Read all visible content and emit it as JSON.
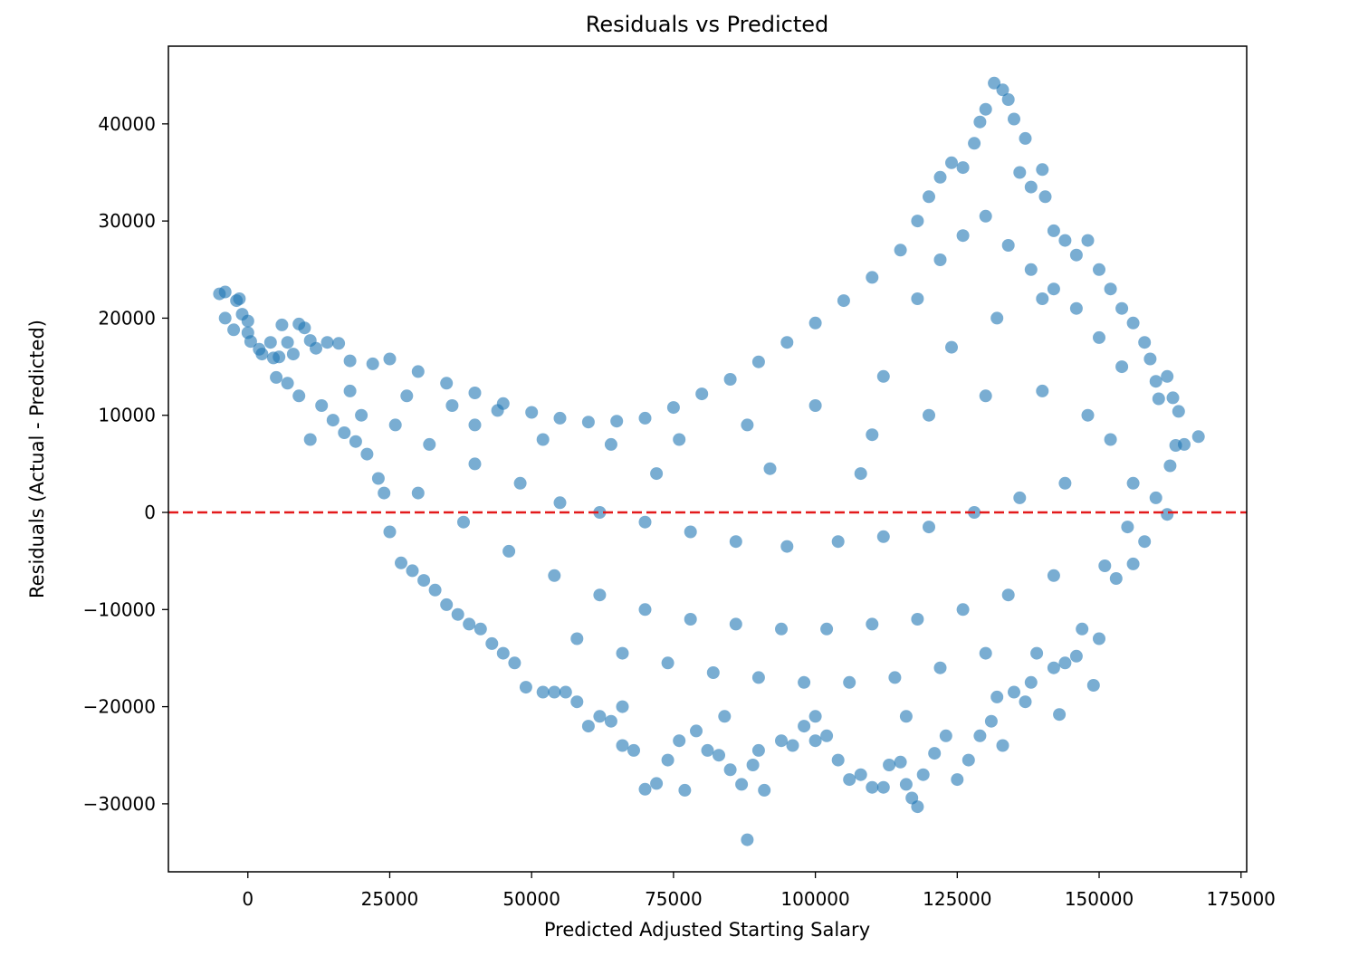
{
  "chart_data": {
    "type": "scatter",
    "title": "Residuals vs Predicted",
    "xlabel": "Predicted Adjusted Starting Salary",
    "ylabel": "Residuals (Actual - Predicted)",
    "xlim": [
      -14000,
      176000
    ],
    "ylim": [
      -37000,
      48000
    ],
    "xticks": [
      0,
      25000,
      50000,
      75000,
      100000,
      125000,
      150000,
      175000
    ],
    "xtick_labels": [
      "0",
      "25000",
      "50000",
      "75000",
      "100000",
      "125000",
      "150000",
      "175000"
    ],
    "yticks": [
      -30000,
      -20000,
      -10000,
      0,
      10000,
      20000,
      30000,
      40000
    ],
    "ytick_labels": [
      "−30000",
      "−20000",
      "−10000",
      "0",
      "10000",
      "20000",
      "30000",
      "40000"
    ],
    "grid": false,
    "reference_line": {
      "y": 0,
      "color": "#e31a1c",
      "style": "dashed"
    },
    "marker_color": "#1f77b4",
    "marker_alpha": 0.6,
    "series": [
      {
        "name": "",
        "points": [
          [
            -5000,
            22500
          ],
          [
            -4000,
            22700
          ],
          [
            -4000,
            20000
          ],
          [
            -2000,
            21800
          ],
          [
            -1500,
            22000
          ],
          [
            -2500,
            18800
          ],
          [
            -1000,
            20400
          ],
          [
            0,
            19700
          ],
          [
            0,
            18500
          ],
          [
            500,
            17600
          ],
          [
            2000,
            16800
          ],
          [
            2500,
            16300
          ],
          [
            4000,
            17500
          ],
          [
            4500,
            15900
          ],
          [
            5500,
            16000
          ],
          [
            6000,
            19300
          ],
          [
            7000,
            17500
          ],
          [
            8000,
            16300
          ],
          [
            9000,
            19400
          ],
          [
            10000,
            19000
          ],
          [
            11000,
            17700
          ],
          [
            12000,
            16900
          ],
          [
            14000,
            17500
          ],
          [
            16000,
            17400
          ],
          [
            18000,
            15600
          ],
          [
            22000,
            15300
          ],
          [
            25000,
            15800
          ],
          [
            30000,
            14500
          ],
          [
            35000,
            13300
          ],
          [
            40000,
            12300
          ],
          [
            45000,
            11200
          ],
          [
            50000,
            10300
          ],
          [
            55000,
            9700
          ],
          [
            60000,
            9300
          ],
          [
            65000,
            9400
          ],
          [
            70000,
            9700
          ],
          [
            75000,
            10800
          ],
          [
            80000,
            12200
          ],
          [
            85000,
            13700
          ],
          [
            90000,
            15500
          ],
          [
            95000,
            17500
          ],
          [
            100000,
            19500
          ],
          [
            105000,
            21800
          ],
          [
            110000,
            24200
          ],
          [
            115000,
            27000
          ],
          [
            118000,
            30000
          ],
          [
            120000,
            32500
          ],
          [
            122000,
            34500
          ],
          [
            124000,
            36000
          ],
          [
            126000,
            35500
          ],
          [
            128000,
            38000
          ],
          [
            129000,
            40200
          ],
          [
            130000,
            41500
          ],
          [
            131500,
            44200
          ],
          [
            133000,
            43500
          ],
          [
            134000,
            42500
          ],
          [
            135000,
            40500
          ],
          [
            137000,
            38500
          ],
          [
            136000,
            35000
          ],
          [
            138000,
            33500
          ],
          [
            140000,
            35300
          ],
          [
            140500,
            32500
          ],
          [
            142000,
            29000
          ],
          [
            144000,
            28000
          ],
          [
            146000,
            26500
          ],
          [
            148000,
            28000
          ],
          [
            150000,
            25000
          ],
          [
            152000,
            23000
          ],
          [
            154000,
            21000
          ],
          [
            156000,
            19500
          ],
          [
            158000,
            17500
          ],
          [
            159000,
            15800
          ],
          [
            160000,
            13500
          ],
          [
            160500,
            11700
          ],
          [
            162000,
            14000
          ],
          [
            163000,
            11800
          ],
          [
            164000,
            10400
          ],
          [
            163500,
            6900
          ],
          [
            165000,
            7000
          ],
          [
            167500,
            7800
          ],
          [
            162500,
            4800
          ],
          [
            162000,
            -200
          ],
          [
            158000,
            -3000
          ],
          [
            156000,
            -5300
          ],
          [
            155000,
            -1500
          ],
          [
            153000,
            -6800
          ],
          [
            151000,
            -5500
          ],
          [
            150000,
            -13000
          ],
          [
            149000,
            -17800
          ],
          [
            147000,
            -12000
          ],
          [
            146000,
            -14800
          ],
          [
            144000,
            -15500
          ],
          [
            143000,
            -20800
          ],
          [
            142000,
            -16000
          ],
          [
            139000,
            -14500
          ],
          [
            138000,
            -17500
          ],
          [
            137000,
            -19500
          ],
          [
            135000,
            -18500
          ],
          [
            133000,
            -24000
          ],
          [
            131000,
            -21500
          ],
          [
            129000,
            -23000
          ],
          [
            127000,
            -25500
          ],
          [
            125000,
            -27500
          ],
          [
            123000,
            -23000
          ],
          [
            121000,
            -24800
          ],
          [
            119000,
            -27000
          ],
          [
            118000,
            -30300
          ],
          [
            117000,
            -29400
          ],
          [
            116000,
            -28000
          ],
          [
            115000,
            -25700
          ],
          [
            113000,
            -26000
          ],
          [
            112000,
            -28300
          ],
          [
            110000,
            -28300
          ],
          [
            108000,
            -27000
          ],
          [
            106000,
            -27500
          ],
          [
            104000,
            -25500
          ],
          [
            102000,
            -23000
          ],
          [
            100000,
            -23500
          ],
          [
            98000,
            -22000
          ],
          [
            96000,
            -24000
          ],
          [
            94000,
            -23500
          ],
          [
            91000,
            -28600
          ],
          [
            90000,
            -24500
          ],
          [
            89000,
            -26000
          ],
          [
            88000,
            -33700
          ],
          [
            87000,
            -28000
          ],
          [
            85000,
            -26500
          ],
          [
            83000,
            -25000
          ],
          [
            81000,
            -24500
          ],
          [
            79000,
            -22500
          ],
          [
            77000,
            -28600
          ],
          [
            76000,
            -23500
          ],
          [
            74000,
            -25500
          ],
          [
            72000,
            -27900
          ],
          [
            70000,
            -28500
          ],
          [
            68000,
            -24500
          ],
          [
            66000,
            -24000
          ],
          [
            64000,
            -21500
          ],
          [
            62000,
            -21000
          ],
          [
            60000,
            -22000
          ],
          [
            58000,
            -19500
          ],
          [
            56000,
            -18500
          ],
          [
            54000,
            -18500
          ],
          [
            52000,
            -18500
          ],
          [
            49000,
            -18000
          ],
          [
            47000,
            -15500
          ],
          [
            45000,
            -14500
          ],
          [
            43000,
            -13500
          ],
          [
            41000,
            -12000
          ],
          [
            39000,
            -11500
          ],
          [
            37000,
            -10500
          ],
          [
            35000,
            -9500
          ],
          [
            33000,
            -8000
          ],
          [
            31000,
            -7000
          ],
          [
            29000,
            -6000
          ],
          [
            27000,
            -5200
          ],
          [
            25000,
            -2000
          ],
          [
            24000,
            2000
          ],
          [
            23000,
            3500
          ],
          [
            21000,
            6000
          ],
          [
            19000,
            7300
          ],
          [
            17000,
            8200
          ],
          [
            15000,
            9500
          ],
          [
            13000,
            11000
          ],
          [
            11000,
            7500
          ],
          [
            9000,
            12000
          ],
          [
            7000,
            13300
          ],
          [
            5000,
            13900
          ],
          [
            20000,
            10000
          ],
          [
            26000,
            9000
          ],
          [
            32000,
            7000
          ],
          [
            40000,
            5000
          ],
          [
            48000,
            3000
          ],
          [
            55000,
            1000
          ],
          [
            62000,
            0
          ],
          [
            70000,
            -1000
          ],
          [
            78000,
            -2000
          ],
          [
            86000,
            -3000
          ],
          [
            95000,
            -3500
          ],
          [
            104000,
            -3000
          ],
          [
            112000,
            -2500
          ],
          [
            120000,
            -1500
          ],
          [
            128000,
            0
          ],
          [
            136000,
            1500
          ],
          [
            144000,
            3000
          ],
          [
            30000,
            2000
          ],
          [
            38000,
            -1000
          ],
          [
            46000,
            -4000
          ],
          [
            54000,
            -6500
          ],
          [
            62000,
            -8500
          ],
          [
            70000,
            -10000
          ],
          [
            78000,
            -11000
          ],
          [
            86000,
            -11500
          ],
          [
            94000,
            -12000
          ],
          [
            102000,
            -12000
          ],
          [
            110000,
            -11500
          ],
          [
            118000,
            -11000
          ],
          [
            126000,
            -10000
          ],
          [
            134000,
            -8500
          ],
          [
            142000,
            -6500
          ],
          [
            58000,
            -13000
          ],
          [
            66000,
            -14500
          ],
          [
            74000,
            -15500
          ],
          [
            82000,
            -16500
          ],
          [
            90000,
            -17000
          ],
          [
            98000,
            -17500
          ],
          [
            106000,
            -17500
          ],
          [
            114000,
            -17000
          ],
          [
            122000,
            -16000
          ],
          [
            130000,
            -14500
          ],
          [
            40000,
            9000
          ],
          [
            52000,
            7500
          ],
          [
            64000,
            7000
          ],
          [
            76000,
            7500
          ],
          [
            88000,
            9000
          ],
          [
            100000,
            11000
          ],
          [
            112000,
            14000
          ],
          [
            124000,
            17000
          ],
          [
            132000,
            20000
          ],
          [
            140000,
            22000
          ],
          [
            118000,
            22000
          ],
          [
            122000,
            26000
          ],
          [
            126000,
            28500
          ],
          [
            130000,
            30500
          ],
          [
            134000,
            27500
          ],
          [
            138000,
            25000
          ],
          [
            142000,
            23000
          ],
          [
            146000,
            21000
          ],
          [
            150000,
            18000
          ],
          [
            154000,
            15000
          ],
          [
            110000,
            8000
          ],
          [
            120000,
            10000
          ],
          [
            130000,
            12000
          ],
          [
            140000,
            12500
          ],
          [
            148000,
            10000
          ],
          [
            152000,
            7500
          ],
          [
            156000,
            3000
          ],
          [
            160000,
            1500
          ],
          [
            66000,
            -20000
          ],
          [
            84000,
            -21000
          ],
          [
            100000,
            -21000
          ],
          [
            116000,
            -21000
          ],
          [
            132000,
            -19000
          ],
          [
            72000,
            4000
          ],
          [
            92000,
            4500
          ],
          [
            108000,
            4000
          ],
          [
            18000,
            12500
          ],
          [
            28000,
            12000
          ],
          [
            36000,
            11000
          ],
          [
            44000,
            10500
          ]
        ]
      }
    ]
  }
}
